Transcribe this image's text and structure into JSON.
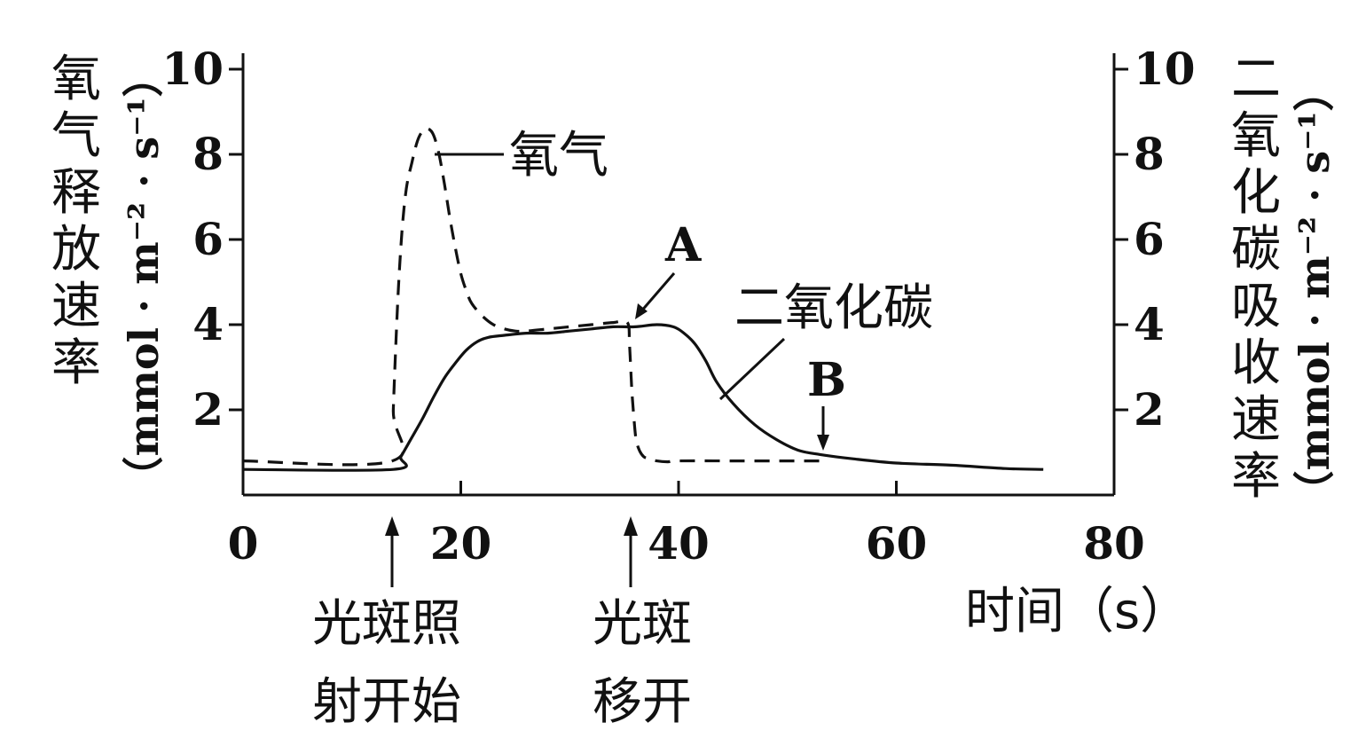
{
  "chart_data": {
    "type": "line",
    "x_ticks": [
      "0",
      "20",
      "40",
      "60",
      "80"
    ],
    "y_left_ticks": [
      "2",
      "4",
      "6",
      "8",
      "10"
    ],
    "y_right_ticks": [
      "2",
      "4",
      "6",
      "8",
      "10"
    ],
    "xlabel": "时间（s）",
    "ylabel_left_text": "氧气释放速率",
    "ylabel_left_unit": "（mmol · m⁻² · s⁻¹）",
    "ylabel_right_text": "二氧化碳吸收速率",
    "ylabel_right_unit": "（mmol · m⁻² · s⁻¹）",
    "xlim": [
      0,
      80
    ],
    "ylim": [
      0,
      10
    ],
    "series": [
      {
        "name": "氧气",
        "style": "dashed",
        "x": [
          0,
          13.7,
          13.8,
          14.2,
          14.6,
          15,
          15.5,
          16,
          16.5,
          17,
          17.5,
          18,
          18.5,
          19,
          19.5,
          20,
          20.5,
          21,
          22,
          23,
          24,
          25,
          26,
          28,
          30,
          32,
          34,
          35.3,
          35.5,
          35.7,
          35.9,
          36.1,
          36.4,
          36.8,
          37.3,
          38,
          39,
          40,
          45,
          50,
          53.5
        ],
        "values": [
          0.8,
          0.8,
          2.0,
          4.5,
          6.2,
          7.2,
          7.8,
          8.3,
          8.55,
          8.6,
          8.45,
          8.0,
          7.3,
          6.5,
          5.8,
          5.2,
          4.8,
          4.5,
          4.2,
          4.0,
          3.9,
          3.85,
          3.85,
          3.9,
          3.95,
          4.0,
          4.05,
          4.05,
          3.5,
          2.5,
          1.8,
          1.3,
          1.05,
          0.9,
          0.85,
          0.8,
          0.78,
          0.8,
          0.8,
          0.8,
          0.8
        ]
      },
      {
        "name": "二氧化碳",
        "style": "solid",
        "x": [
          0,
          13.8,
          14.5,
          15.5,
          16.5,
          17.5,
          18.5,
          19.5,
          20.5,
          21.5,
          22.5,
          24,
          26,
          28,
          30,
          32,
          34,
          36,
          38,
          39.5,
          40.5,
          41.5,
          42.5,
          43.5,
          45,
          47,
          49,
          51,
          53,
          56,
          60,
          65,
          70,
          73.5
        ],
        "values": [
          0.6,
          0.6,
          0.9,
          1.35,
          1.8,
          2.3,
          2.75,
          3.1,
          3.4,
          3.6,
          3.7,
          3.75,
          3.8,
          3.8,
          3.85,
          3.9,
          3.95,
          3.95,
          4.0,
          3.95,
          3.8,
          3.55,
          3.15,
          2.65,
          2.15,
          1.65,
          1.3,
          1.05,
          0.95,
          0.85,
          0.75,
          0.7,
          0.62,
          0.6
        ]
      }
    ],
    "annotations": {
      "oxygen_label": "氧气",
      "co2_label": "二氧化碳",
      "point_a": "A",
      "point_b": "B",
      "start_line1": "光斑照",
      "start_line2": "射开始",
      "end_line1": "光斑",
      "end_line2": "移开"
    },
    "grid": false,
    "legend": "none"
  }
}
